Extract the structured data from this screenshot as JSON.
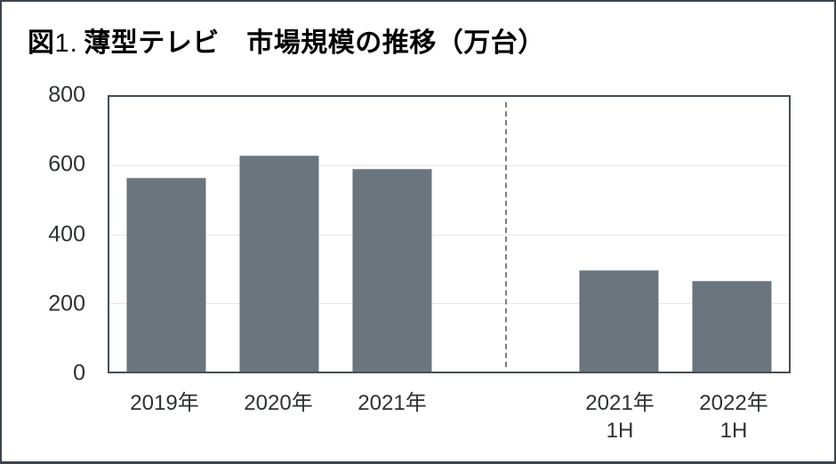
{
  "title": {
    "figure_label": "図",
    "figure_number": "1.",
    "text": "薄型テレビ　市場規模の推移（万台）"
  },
  "colors": {
    "bar": "#6A757E",
    "plot_border": "#484D53",
    "outer_border": "#3E444B",
    "gridline": "#E5E8EA",
    "divider": "#7F7F7F",
    "axis_label": "#2E3133",
    "title": "#000000"
  },
  "chart_data": {
    "type": "bar",
    "title": "図1. 薄型テレビ　市場規模の推移（万台）",
    "unit": "万台",
    "ylim": [
      0,
      800
    ],
    "yticks": [
      800,
      600,
      400,
      200,
      0
    ],
    "grid": true,
    "legend": false,
    "categories": [
      "2019年",
      "2020年",
      "2021年",
      "",
      "2021年 1H",
      "2022年 1H"
    ],
    "values": [
      565,
      630,
      590,
      null,
      295,
      265
    ],
    "bar_color": "#6A757E",
    "divider": {
      "style": "dashed",
      "at_slot_center": 3
    }
  }
}
